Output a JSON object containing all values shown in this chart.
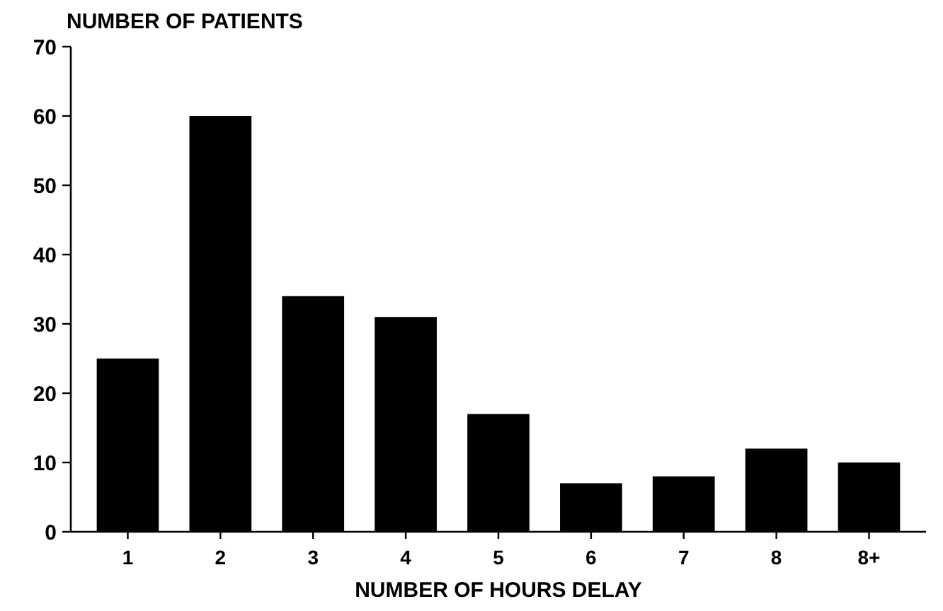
{
  "chart_data": {
    "type": "bar",
    "ylabel": "NUMBER OF PATIENTS",
    "xlabel": "NUMBER OF HOURS DELAY",
    "categories": [
      "1",
      "2",
      "3",
      "4",
      "5",
      "6",
      "7",
      "8",
      "8+"
    ],
    "values": [
      25,
      60,
      34,
      31,
      17,
      7,
      8,
      12,
      10
    ],
    "color": "#000000",
    "ylim": [
      0,
      70
    ],
    "yticks": [
      0,
      10,
      20,
      30,
      40,
      50,
      60,
      70
    ],
    "grid": false
  }
}
